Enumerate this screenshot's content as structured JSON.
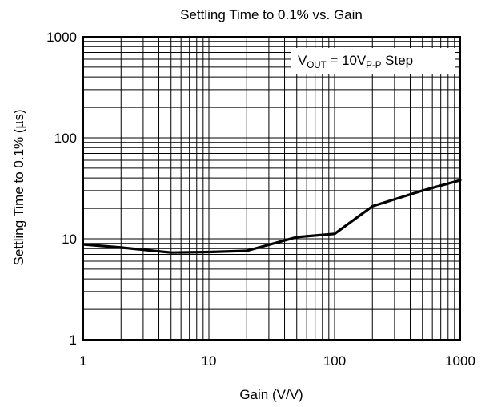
{
  "chart_data": {
    "type": "line",
    "title": "Settling Time to 0.1% vs. Gain",
    "xlabel": "Gain (V/V)",
    "ylabel": "Settling Time to 0.1% (µs)",
    "xscale": "log",
    "yscale": "log",
    "xlim": [
      1,
      1000
    ],
    "ylim": [
      1,
      1000
    ],
    "xticks": [
      "1",
      "10",
      "100",
      "1000"
    ],
    "yticks": [
      "1",
      "10",
      "100",
      "1000"
    ],
    "grid": true,
    "annotation": {
      "main": "V",
      "sub1": "OUT",
      "mid": " = 10V",
      "sub2": "P-P",
      "tail": " Step"
    },
    "series": [
      {
        "x": [
          1,
          2,
          5,
          10,
          20,
          50,
          100,
          200,
          500,
          1000
        ],
        "y": [
          8.8,
          8.2,
          7.3,
          7.4,
          7.6,
          10.4,
          11.2,
          21,
          30,
          38
        ]
      }
    ]
  }
}
